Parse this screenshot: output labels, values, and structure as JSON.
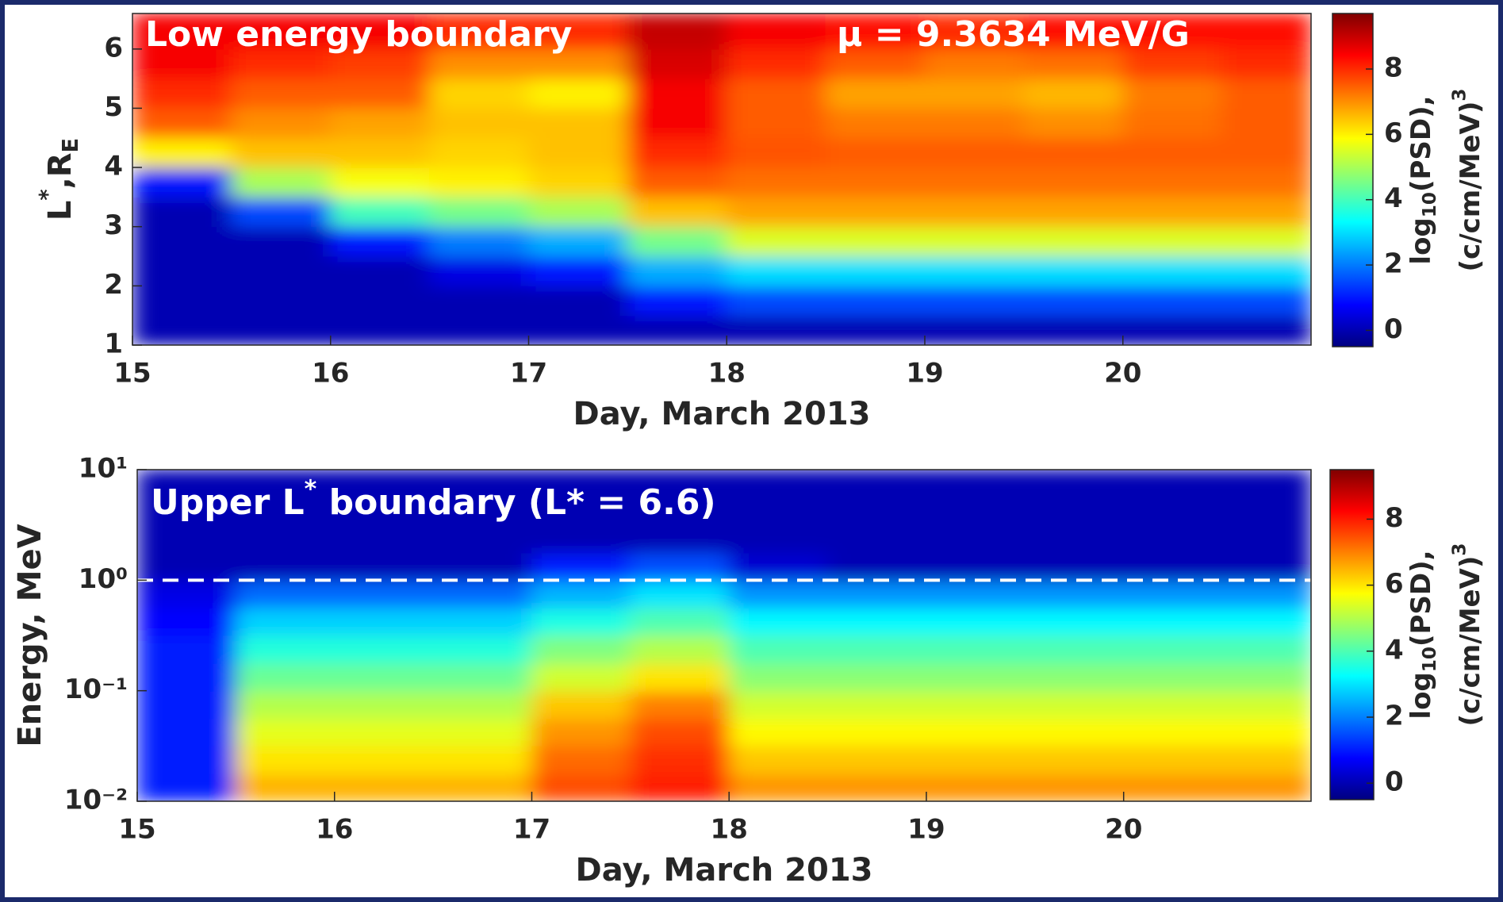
{
  "chart_data": [
    {
      "type": "heatmap",
      "title": "Low energy boundary",
      "annotation": "μ = 9.3634 MeV/G",
      "x_label": "Day, March 2013",
      "y_label": [
        "L",
        "*",
        ",R",
        "E"
      ],
      "x": [
        15.25,
        15.75,
        16.25,
        16.75,
        17.25,
        17.75,
        18.25,
        18.75,
        19.25,
        19.75,
        20.25,
        20.75
      ],
      "y": [
        1.25,
        1.75,
        2.25,
        2.75,
        3.25,
        3.75,
        4.25,
        4.75,
        5.25,
        5.75,
        6.25
      ],
      "z": [
        [
          0,
          0,
          0,
          0,
          0,
          0,
          0,
          0,
          0,
          0,
          0,
          0
        ],
        [
          0,
          0,
          0,
          0,
          0,
          1,
          1.5,
          1.5,
          1.5,
          1.5,
          1.5,
          1.5
        ],
        [
          0,
          0,
          0,
          0.5,
          1,
          2.5,
          3,
          3,
          3,
          3,
          3,
          3
        ],
        [
          0,
          0,
          1,
          2,
          2.5,
          4.5,
          5.5,
          5.5,
          5.5,
          5.5,
          5.5,
          5.5
        ],
        [
          0,
          1.5,
          4,
          4.5,
          5,
          6.5,
          6.8,
          6.8,
          6.8,
          6.8,
          6.8,
          6.8
        ],
        [
          1,
          5,
          5.8,
          6,
          6.3,
          7.5,
          7.3,
          7.3,
          7.3,
          7.3,
          7.3,
          7.3
        ],
        [
          6,
          6.5,
          6.5,
          6.3,
          6.5,
          8,
          7.6,
          7.5,
          7.5,
          7.5,
          7.5,
          7.5
        ],
        [
          7.5,
          7,
          6.8,
          6.5,
          6.5,
          8.5,
          7.5,
          7.2,
          7.2,
          7,
          7.3,
          7.5
        ],
        [
          8,
          7.5,
          7.5,
          6.3,
          6,
          8.5,
          7.5,
          6.8,
          6.8,
          6.6,
          7.2,
          7.5
        ],
        [
          8.5,
          8,
          7.8,
          7,
          7,
          8.8,
          8,
          7.5,
          7.2,
          7.3,
          7.8,
          8
        ],
        [
          8.5,
          8.5,
          8.5,
          8,
          8,
          9,
          8.5,
          8.3,
          8,
          8.3,
          8.3,
          8.3
        ]
      ],
      "xlim": [
        15,
        20.95
      ],
      "xticks": [
        15,
        16,
        17,
        18,
        19,
        20
      ],
      "ylim": [
        1,
        6.6
      ],
      "yticks": [
        1,
        2,
        3,
        4,
        5,
        6
      ],
      "colormap": "jet",
      "clim": [
        -0.5,
        9.7
      ],
      "colorbar_ticks": [
        0,
        2,
        4,
        6,
        8
      ],
      "colorbar_label": [
        [
          "log",
          "10",
          "(PSD),"
        ],
        [
          "(c/cm/MeV)",
          "3"
        ]
      ]
    },
    {
      "type": "heatmap",
      "title": [
        "Upper L",
        "*",
        " boundary (L* = 6.6)"
      ],
      "x_label": "Day, March 2013",
      "y_label": "Energy, MeV",
      "y_scale": "log",
      "x": [
        15.25,
        15.75,
        16.25,
        16.75,
        17.25,
        17.75,
        18.25,
        18.75,
        19.25,
        19.75,
        20.25,
        20.75
      ],
      "y": [
        0.013,
        0.024,
        0.042,
        0.075,
        0.13,
        0.24,
        0.42,
        0.75,
        1.3,
        2.4,
        4.2,
        7.5
      ],
      "z": [
        [
          1,
          6.5,
          6.5,
          6.5,
          7.5,
          8,
          6.8,
          6.8,
          6.8,
          6.8,
          6.8,
          6.8
        ],
        [
          1,
          6,
          6,
          6,
          7.2,
          7.8,
          6.3,
          6.3,
          6.3,
          6.3,
          6.3,
          6.3
        ],
        [
          1,
          5.5,
          5.5,
          5.5,
          6.8,
          7.5,
          5.8,
          5.8,
          5.8,
          5.8,
          5.8,
          5.8
        ],
        [
          1,
          5,
          5,
          5,
          6.3,
          7,
          5.3,
          5.3,
          5.3,
          5.3,
          5.3,
          5.3
        ],
        [
          1,
          4.3,
          4.3,
          4.3,
          5.3,
          6,
          4.6,
          4.6,
          4.6,
          4.6,
          4.6,
          4.6
        ],
        [
          1,
          3.6,
          3.6,
          3.6,
          4.5,
          5,
          4,
          4,
          4,
          4,
          4,
          4
        ],
        [
          0.8,
          2.8,
          2.8,
          2.8,
          3.5,
          4,
          3.2,
          3.2,
          3.2,
          3.2,
          3.2,
          3.2
        ],
        [
          0.5,
          1.8,
          1.8,
          1.8,
          2.5,
          3,
          2.2,
          2.2,
          2.2,
          2.2,
          2.2,
          2.2
        ],
        [
          0,
          0,
          0,
          0,
          1,
          1.5,
          0.3,
          0,
          0,
          0,
          0,
          0
        ],
        [
          0,
          0,
          0,
          0,
          0,
          0,
          0,
          0,
          0,
          0,
          0,
          0
        ],
        [
          0,
          0,
          0,
          0,
          0,
          0,
          0,
          0,
          0,
          0,
          0,
          0
        ],
        [
          0,
          0,
          0,
          0,
          0,
          0,
          0,
          0,
          0,
          0,
          0,
          0
        ]
      ],
      "hline": 1,
      "xlim": [
        15,
        20.95
      ],
      "xticks": [
        15,
        16,
        17,
        18,
        19,
        20
      ],
      "ylim": [
        0.01,
        10
      ],
      "yticks": [
        {
          "value": 0.01,
          "label": "10⁻²"
        },
        {
          "value": 0.1,
          "label": "10⁻¹"
        },
        {
          "value": 1,
          "label": "10⁰"
        },
        {
          "value": 10,
          "label": "10¹"
        }
      ],
      "colormap": "jet",
      "clim": [
        -0.5,
        9.5
      ],
      "colorbar_ticks": [
        0,
        2,
        4,
        6,
        8
      ],
      "colorbar_label": [
        [
          "log",
          "10",
          "(PSD),"
        ],
        [
          "(c/cm/MeV)",
          "3"
        ]
      ]
    }
  ]
}
